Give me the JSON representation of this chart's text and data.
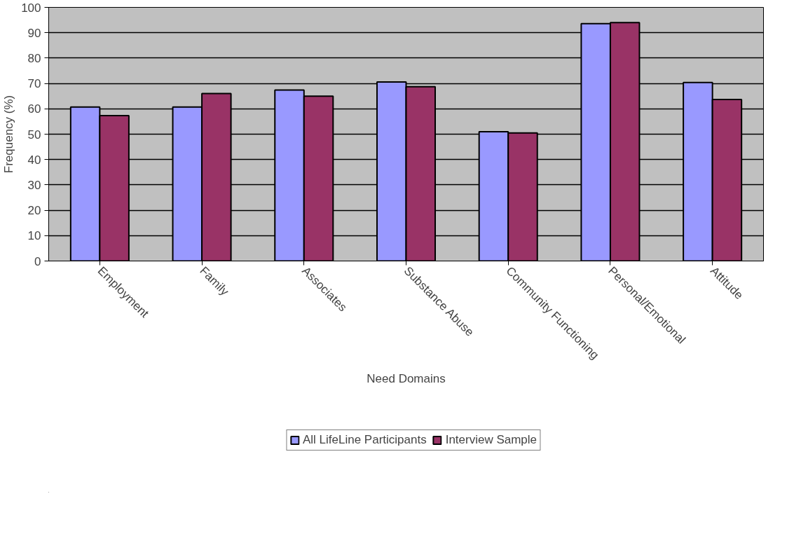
{
  "chart_data": {
    "type": "bar",
    "xlabel": "Need Domains",
    "ylabel": "Frequency (%)",
    "categories": [
      "Employment",
      "Family",
      "Associates",
      "Substance Abuse",
      "Community Functioning",
      "Personal/Emotional",
      "Attitude"
    ],
    "series": [
      {
        "name": "All LifeLine Participants",
        "color": "#9999ff",
        "values": [
          60.7,
          60.7,
          67.4,
          70.6,
          51,
          93.6,
          70.4
        ]
      },
      {
        "name": "Interview Sample",
        "color": "#993366",
        "values": [
          57.3,
          66,
          65,
          68.7,
          50.5,
          94,
          63.7
        ]
      }
    ],
    "ylim": [
      0,
      100
    ],
    "yticks": [
      0,
      10,
      20,
      30,
      40,
      50,
      60,
      70,
      80,
      90,
      100
    ],
    "grid": "y",
    "legend": "bottom"
  }
}
